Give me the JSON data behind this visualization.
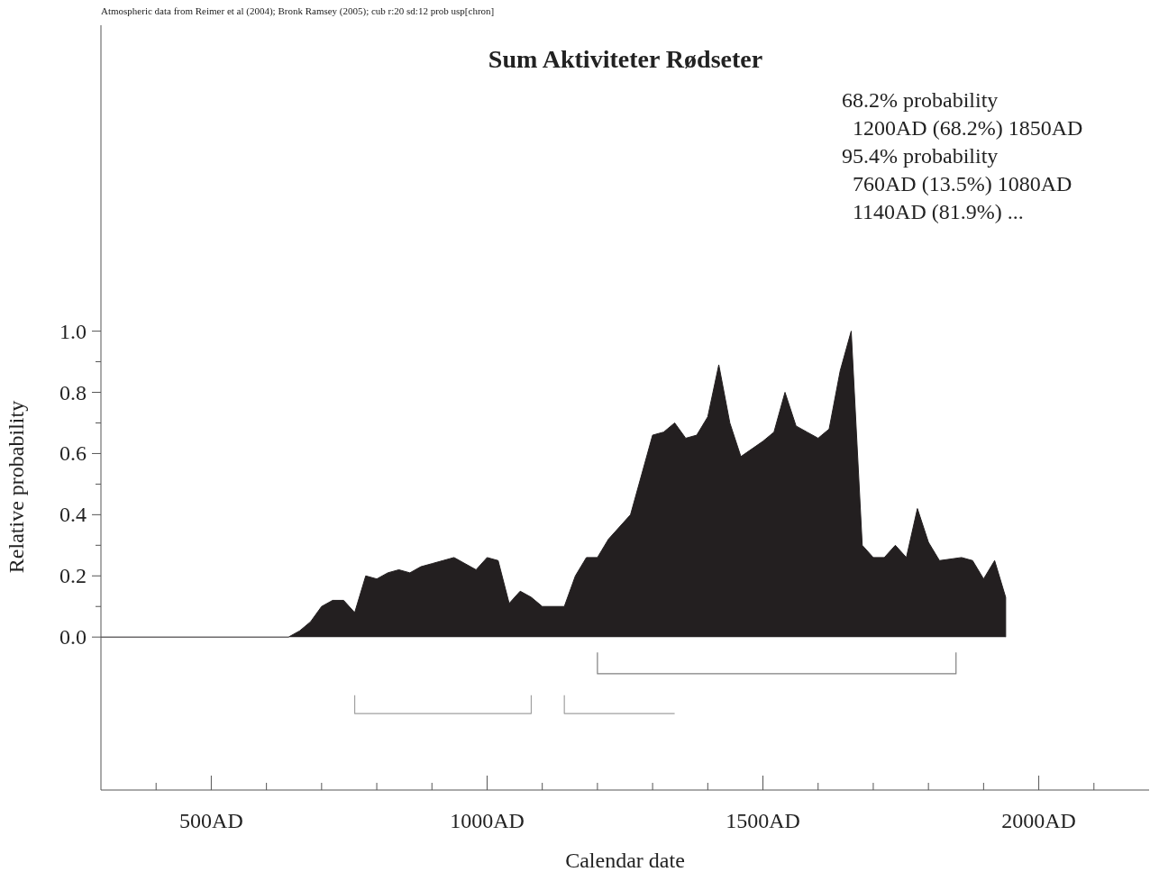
{
  "chart_data": {
    "title": "Sum Aktiviteter Rødseter",
    "xlabel": "Calendar date",
    "ylabel": "Relative probability",
    "annotations": [
      "Atmospheric data from Reimer et al (2004); Bronk Ramsey (2005); cub r:20 sd:12 prob usp[chron]",
      "68.2% probability",
      "  1200AD (68.2%) 1850AD",
      "95.4% probability",
      "  760AD (13.5%) 1080AD",
      "  1140AD (81.9%) ..."
    ],
    "type": "area",
    "series": [
      {
        "color": "#231f20",
        "x": [
          300,
          640,
          660,
          680,
          700,
          720,
          740,
          760,
          780,
          800,
          820,
          840,
          860,
          880,
          900,
          920,
          940,
          960,
          980,
          1000,
          1020,
          1040,
          1060,
          1080,
          1100,
          1140,
          1160,
          1180,
          1200,
          1220,
          1260,
          1300,
          1320,
          1340,
          1360,
          1380,
          1400,
          1420,
          1440,
          1460,
          1500,
          1520,
          1540,
          1560,
          1580,
          1600,
          1620,
          1640,
          1660,
          1680,
          1700,
          1720,
          1740,
          1760,
          1780,
          1800,
          1820,
          1860,
          1880,
          1900,
          1920,
          1940,
          1940
        ],
        "values": [
          0,
          0,
          0.02,
          0.05,
          0.1,
          0.12,
          0.12,
          0.08,
          0.2,
          0.19,
          0.21,
          0.22,
          0.21,
          0.23,
          0.24,
          0.25,
          0.26,
          0.24,
          0.22,
          0.26,
          0.25,
          0.11,
          0.15,
          0.13,
          0.1,
          0.1,
          0.2,
          0.26,
          0.26,
          0.32,
          0.4,
          0.66,
          0.67,
          0.7,
          0.65,
          0.66,
          0.72,
          0.89,
          0.7,
          0.59,
          0.64,
          0.67,
          0.8,
          0.69,
          0.67,
          0.65,
          0.68,
          0.87,
          1.0,
          0.3,
          0.26,
          0.26,
          0.3,
          0.26,
          0.42,
          0.31,
          0.25,
          0.26,
          0.25,
          0.19,
          0.25,
          0.13,
          0
        ]
      },
      {
        "type": "line",
        "color": "#808080",
        "x": [
          1200,
          1200,
          1850,
          1850
        ],
        "values": [
          -0.05,
          -0.12,
          -0.12,
          -0.05
        ]
      },
      {
        "type": "line",
        "color": "#a0a0a0",
        "x": [
          760,
          760,
          1080,
          1080
        ],
        "values": [
          -0.19,
          -0.25,
          -0.25,
          -0.19
        ]
      },
      {
        "type": "line",
        "color": "#a0a0a0",
        "x": [
          1140,
          1140,
          1340
        ],
        "values": [
          -0.19,
          -0.25,
          -0.25
        ]
      }
    ],
    "xlim": [
      300,
      2200
    ],
    "xticks": [
      {
        "value": 400,
        "label": null
      },
      {
        "value": 500,
        "label": "500AD"
      },
      {
        "value": 600,
        "label": null
      },
      {
        "value": 700,
        "label": null
      },
      {
        "value": 800,
        "label": null
      },
      {
        "value": 900,
        "label": null
      },
      {
        "value": 1000,
        "label": "1000AD"
      },
      {
        "value": 1100,
        "label": null
      },
      {
        "value": 1200,
        "label": null
      },
      {
        "value": 1300,
        "label": null
      },
      {
        "value": 1400,
        "label": null
      },
      {
        "value": 1500,
        "label": "1500AD"
      },
      {
        "value": 1600,
        "label": null
      },
      {
        "value": 1700,
        "label": null
      },
      {
        "value": 1800,
        "label": null
      },
      {
        "value": 1900,
        "label": null
      },
      {
        "value": 2000,
        "label": "2000AD"
      },
      {
        "value": 2100,
        "label": null
      }
    ],
    "ylim": [
      -0.5,
      2.0
    ],
    "yticks": [
      {
        "value": 0,
        "label": "0.0"
      },
      {
        "value": 0.1,
        "label": null
      },
      {
        "value": 0.2,
        "label": "0.2"
      },
      {
        "value": 0.3,
        "label": null
      },
      {
        "value": 0.4,
        "label": "0.4"
      },
      {
        "value": 0.5,
        "label": null
      },
      {
        "value": 0.6,
        "label": "0.6"
      },
      {
        "value": 0.7,
        "label": null
      },
      {
        "value": 0.8,
        "label": "0.8"
      },
      {
        "value": 0.9,
        "label": null
      },
      {
        "value": 1.0,
        "label": "1.0"
      }
    ]
  }
}
